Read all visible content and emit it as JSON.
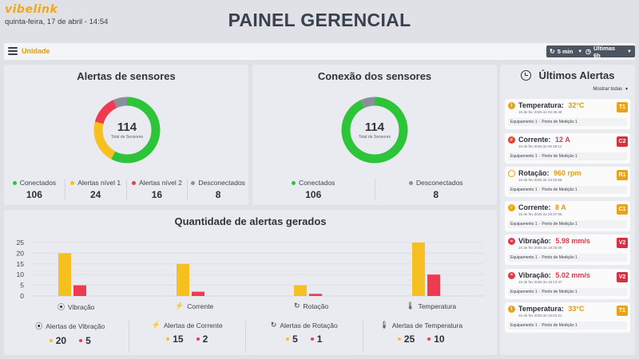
{
  "header": {
    "logo": "vibelink",
    "datetime": "quinta-feira, 17 de abril - 14:54",
    "title": "PAINEL GERENCIAL"
  },
  "toolbar": {
    "unit_label": "Unidade",
    "refresh_label": "5 min",
    "range_label": "Últimas 6h"
  },
  "sensor_alerts": {
    "title": "Alertas de sensores",
    "total": "114",
    "total_label": "Total de Sensores",
    "legend": [
      {
        "label": "Conectados",
        "value": "106",
        "color": "#2ec43a"
      },
      {
        "label": "Alertas nível 1",
        "value": "24",
        "color": "#f5c020"
      },
      {
        "label": "Alertas nível 2",
        "value": "16",
        "color": "#ef3b4f"
      },
      {
        "label": "Desconectados",
        "value": "8",
        "color": "#8a909a"
      }
    ],
    "donut": [
      {
        "value": 66,
        "color": "#2ec43a"
      },
      {
        "value": 24,
        "color": "#f5c020"
      },
      {
        "value": 16,
        "color": "#ef3b4f"
      },
      {
        "value": 8,
        "color": "#8a909a"
      }
    ]
  },
  "sensor_connection": {
    "title": "Conexão dos sensores",
    "total": "114",
    "total_label": "Total de Sensores",
    "legend": [
      {
        "label": "Conectados",
        "value": "106",
        "color": "#2ec43a"
      },
      {
        "label": "Desconectados",
        "value": "8",
        "color": "#8a909a"
      }
    ],
    "donut": [
      {
        "value": 106,
        "color": "#2ec43a"
      },
      {
        "value": 8,
        "color": "#8a909a"
      }
    ]
  },
  "alerts_generated": {
    "title": "Quantidade de alertas gerados",
    "summary": [
      {
        "label": "Alertas de Vibração",
        "icon": "vibration-icon",
        "level1": "20",
        "level2": "5"
      },
      {
        "label": "Alertas de Corrente",
        "icon": "current-icon",
        "level1": "15",
        "level2": "2"
      },
      {
        "label": "Alertas de Rotação",
        "icon": "rotation-icon",
        "level1": "5",
        "level2": "1"
      },
      {
        "label": "Alertas de Temperatura",
        "icon": "temperature-icon",
        "level1": "25",
        "level2": "10"
      }
    ]
  },
  "chart_data": {
    "type": "bar",
    "categories": [
      "Vibração",
      "Corrente",
      "Rotação",
      "Temperatura"
    ],
    "category_icons": [
      "vibration-icon",
      "current-icon",
      "rotation-icon",
      "temperature-icon"
    ],
    "series": [
      {
        "values": [
          20,
          15,
          5,
          25
        ],
        "color": "#f5c020"
      },
      {
        "values": [
          5,
          2,
          1,
          10
        ],
        "color": "#ef3b4f"
      }
    ],
    "yticks": [
      0,
      5,
      10,
      15,
      20,
      25
    ],
    "ylim": [
      0,
      25
    ],
    "grid": true,
    "legend": "none"
  },
  "latest_alerts": {
    "title": "Últimos Alertas",
    "show_all": "Mostrar todas",
    "items": [
      {
        "type": "Temperatura:",
        "value": "32°C",
        "value_color": "#e39a10",
        "time": "15 de fev 2025 às 02:35:48",
        "badge": "T1",
        "badge_color": "#e9a316",
        "icon": "temperature-icon",
        "icon_color": "#e9a316",
        "equipment": "Equipamento 1",
        "point": "Ponto de Medição 1"
      },
      {
        "type": "Corrente:",
        "value": "12 A",
        "value_color": "#e03a4a",
        "time": "15 de fev 2025 às 00:39:11",
        "badge": "C2",
        "badge_color": "#d7313f",
        "icon": "current-icon",
        "icon_color": "#e03a4a",
        "equipment": "Equipamento 1",
        "point": "Ponto de Medição 1"
      },
      {
        "type": "Rotação:",
        "value": "960 rpm",
        "value_color": "#e39a10",
        "time": "15 de fev 2025 às 23:22:58",
        "badge": "R1",
        "badge_color": "#e9a316",
        "icon": "rotation-icon",
        "icon_color": "#e9a316",
        "equipment": "Equipamento 1",
        "point": "Ponto de Medição 1"
      },
      {
        "type": "Corrente:",
        "value": "8 A",
        "value_color": "#e39a10",
        "time": "15 de fev 2025 às 20:37:06",
        "badge": "C1",
        "badge_color": "#e9a316",
        "icon": "current-icon",
        "icon_color": "#e9a316",
        "equipment": "Equipamento 1",
        "point": "Ponto de Medição 1"
      },
      {
        "type": "Vibração:",
        "value": "5.98 mm/s",
        "value_color": "#e03a4a",
        "time": "15 de fev 2025 às 18:25:08",
        "badge": "V2",
        "badge_color": "#d7313f",
        "icon": "vibration-icon",
        "icon_color": "#e03a4a",
        "equipment": "Equipamento 1",
        "point": "Ponto de Medição 1"
      },
      {
        "type": "Vibração:",
        "value": "5.02 mm/s",
        "value_color": "#e03a4a",
        "time": "15 de fev 2025 às 18:13:47",
        "badge": "V2",
        "badge_color": "#d7313f",
        "icon": "vibration-icon",
        "icon_color": "#e03a4a",
        "equipment": "Equipamento 1",
        "point": "Ponto de Medição 1"
      },
      {
        "type": "Temperatura:",
        "value": "33°C",
        "value_color": "#e39a10",
        "time": "15 de fev 2025 às 16:04:21",
        "badge": "T1",
        "badge_color": "#e9a316",
        "icon": "temperature-icon",
        "icon_color": "#e9a316",
        "equipment": "Equipamento 1",
        "point": "Ponto de Medição 1"
      }
    ]
  }
}
